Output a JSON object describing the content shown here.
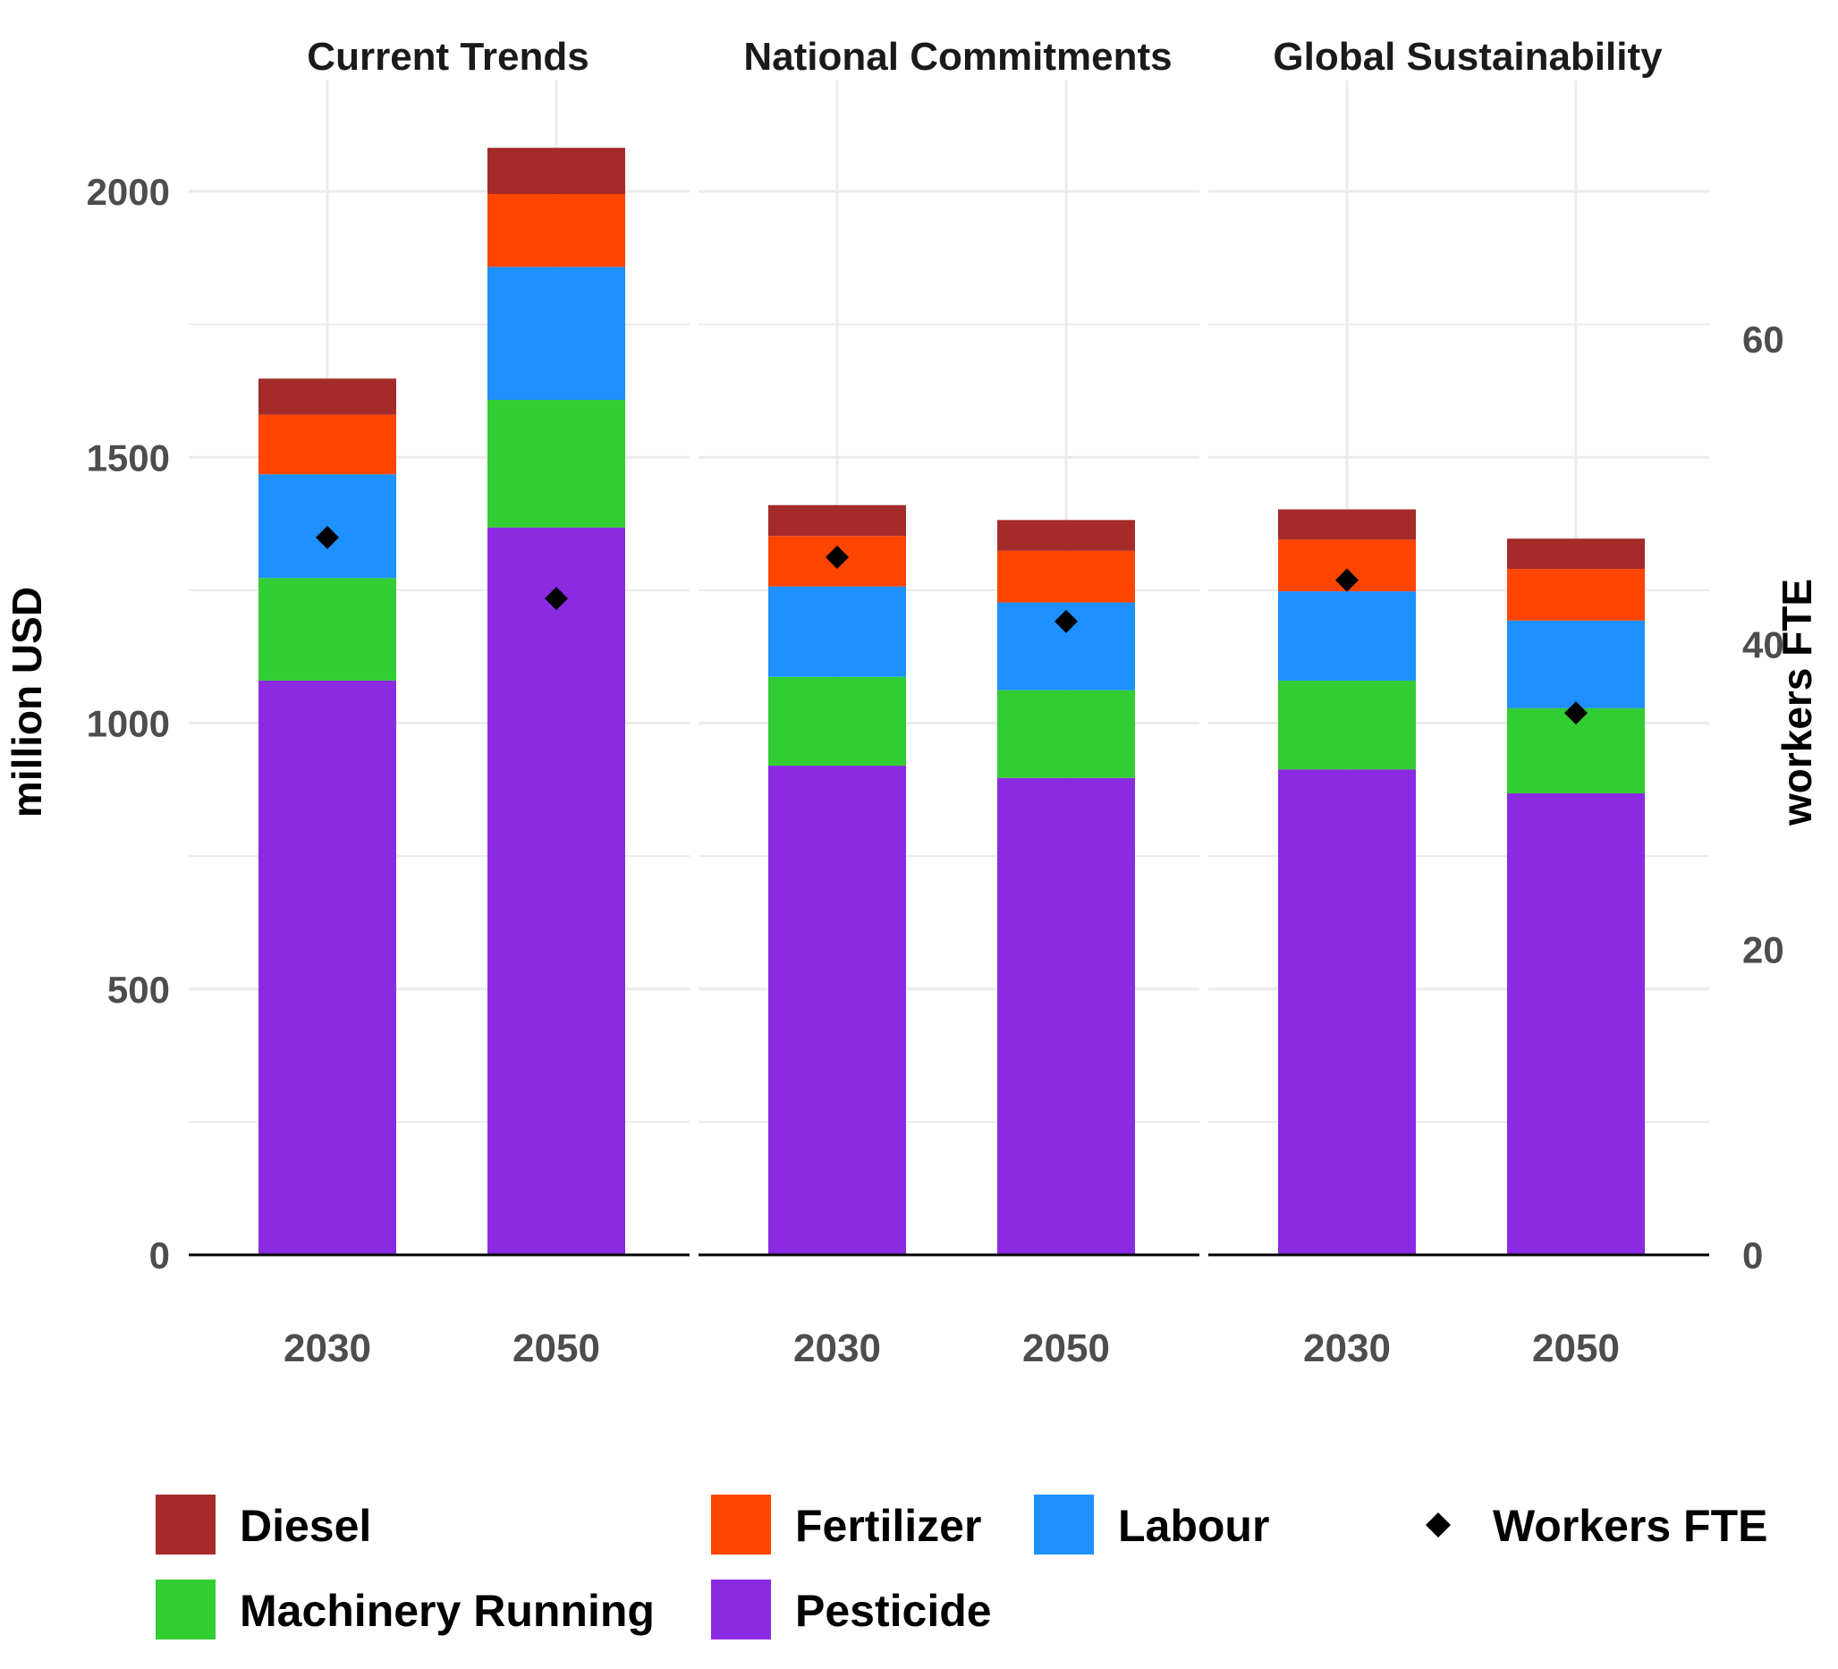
{
  "chart_data": {
    "type": "bar",
    "stacked": true,
    "facets": [
      "Current Trends",
      "National Commitments",
      "Global Sustainability"
    ],
    "categories": [
      "2030",
      "2050"
    ],
    "ylabel": "million USD",
    "y2label": "workers FTE",
    "ylim": [
      0,
      2100
    ],
    "y_ticks": [
      0,
      500,
      1000,
      1500,
      2000
    ],
    "y2lim": [
      0,
      72
    ],
    "y2_ticks": [
      0,
      20,
      40,
      60
    ],
    "grid": true,
    "legend_position": "bottom",
    "series": [
      {
        "name": "Pesticide",
        "color": "#8A2BE2",
        "values": [
          [
            1080,
            1368
          ],
          [
            920,
            897
          ],
          [
            913,
            868
          ]
        ]
      },
      {
        "name": "Machinery Running",
        "color": "#32CD32",
        "values": [
          [
            193,
            240
          ],
          [
            167,
            165
          ],
          [
            167,
            160
          ]
        ]
      },
      {
        "name": "Labour",
        "color": "#1E90FF",
        "values": [
          [
            195,
            250
          ],
          [
            170,
            165
          ],
          [
            168,
            165
          ]
        ]
      },
      {
        "name": "Fertilizer",
        "color": "#FF4500",
        "values": [
          [
            112,
            137
          ],
          [
            95,
            97
          ],
          [
            97,
            97
          ]
        ]
      },
      {
        "name": "Diesel",
        "color": "#A52A2A",
        "values": [
          [
            68,
            87
          ],
          [
            58,
            58
          ],
          [
            57,
            57
          ]
        ]
      }
    ],
    "points": {
      "name": "Workers FTE",
      "color": "#000000",
      "shape": "diamond",
      "axis": "right",
      "values": [
        [
          47.0,
          43.0
        ],
        [
          45.7,
          41.5
        ],
        [
          44.2,
          35.5
        ]
      ]
    },
    "legend": {
      "items": [
        {
          "label": "Diesel",
          "kind": "rect",
          "color": "#A52A2A"
        },
        {
          "label": "Fertilizer",
          "kind": "rect",
          "color": "#FF4500"
        },
        {
          "label": "Labour",
          "kind": "rect",
          "color": "#1E90FF"
        },
        {
          "label": "Workers FTE",
          "kind": "diamond",
          "color": "#000000"
        },
        {
          "label": "Machinery Running",
          "kind": "rect",
          "color": "#32CD32"
        },
        {
          "label": "Pesticide",
          "kind": "rect",
          "color": "#8A2BE2"
        }
      ]
    }
  }
}
